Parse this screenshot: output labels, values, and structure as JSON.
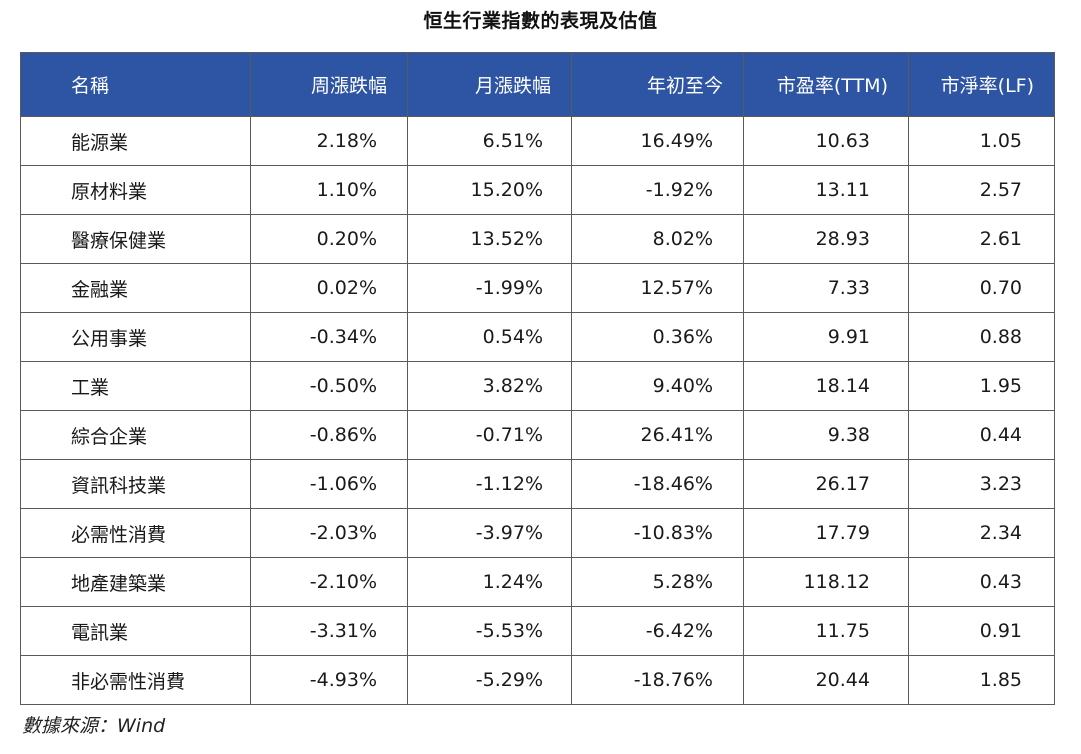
{
  "title": "恒生行業指數的表現及估值",
  "table": {
    "headers": [
      "名稱",
      "周漲跌幅",
      "月漲跌幅",
      "年初至今",
      "市盈率(TTM)",
      "市淨率(LF)"
    ],
    "rows": [
      [
        "能源業",
        "2.18%",
        "6.51%",
        "16.49%",
        "10.63",
        "1.05"
      ],
      [
        "原材料業",
        "1.10%",
        "15.20%",
        "-1.92%",
        "13.11",
        "2.57"
      ],
      [
        "醫療保健業",
        "0.20%",
        "13.52%",
        "8.02%",
        "28.93",
        "2.61"
      ],
      [
        "金融業",
        "0.02%",
        "-1.99%",
        "12.57%",
        "7.33",
        "0.70"
      ],
      [
        "公用事業",
        "-0.34%",
        "0.54%",
        "0.36%",
        "9.91",
        "0.88"
      ],
      [
        "工業",
        "-0.50%",
        "3.82%",
        "9.40%",
        "18.14",
        "1.95"
      ],
      [
        "綜合企業",
        "-0.86%",
        "-0.71%",
        "26.41%",
        "9.38",
        "0.44"
      ],
      [
        "資訊科技業",
        "-1.06%",
        "-1.12%",
        "-18.46%",
        "26.17",
        "3.23"
      ],
      [
        "必需性消費",
        "-2.03%",
        "-3.97%",
        "-10.83%",
        "17.79",
        "2.34"
      ],
      [
        "地產建築業",
        "-2.10%",
        "1.24%",
        "5.28%",
        "118.12",
        "0.43"
      ],
      [
        "電訊業",
        "-3.31%",
        "-5.53%",
        "-6.42%",
        "11.75",
        "0.91"
      ],
      [
        "非必需性消費",
        "-4.93%",
        "-5.29%",
        "-18.76%",
        "20.44",
        "1.85"
      ]
    ]
  },
  "source": "數據來源：Wind",
  "colors": {
    "header_bg": "#2e54a4",
    "header_text": "#ffffff",
    "border": "#5a5a5a"
  }
}
